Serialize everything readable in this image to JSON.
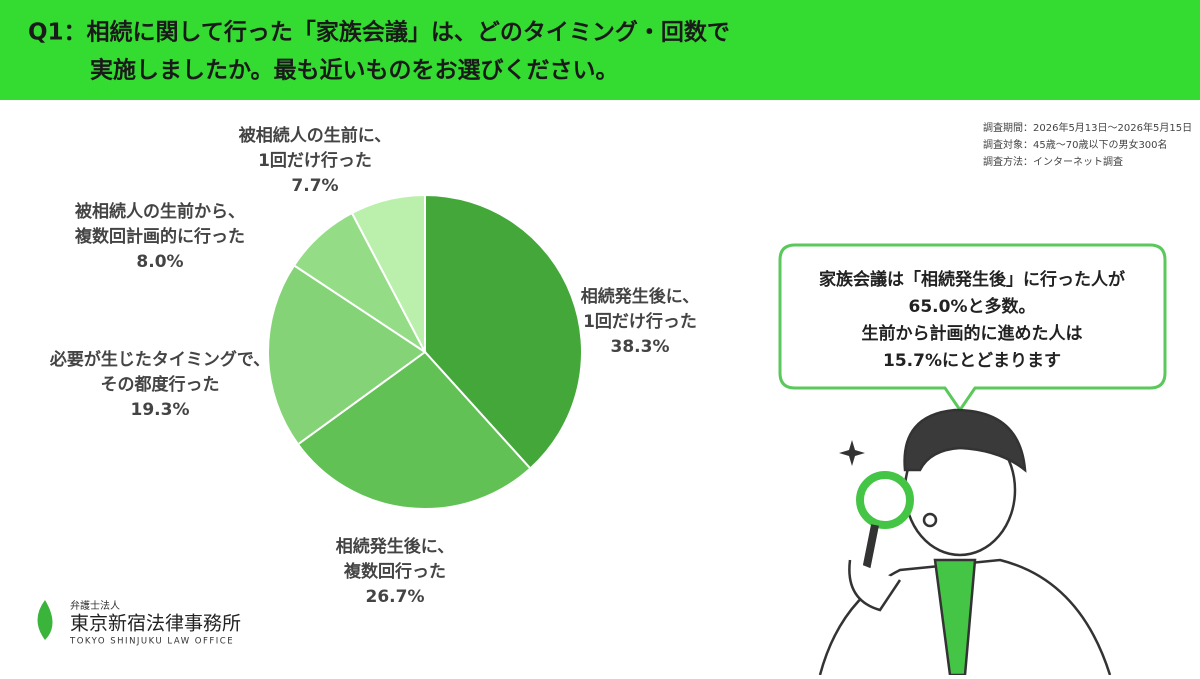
{
  "chart_data": {
    "type": "pie",
    "title_lines": [
      "Q1：相続に関して行った「家族会議」は、どのタイミング・回数で",
      "実施しましたか。最も近いものをお選びください。"
    ],
    "categories": [
      "相続発生後に、\n1回だけ行った",
      "相続発生後に、\n複数回行った",
      "必要が生じたタイミングで、\nその都度行った",
      "被相続人の生前から、\n複数回計画的に行った",
      "被相続人の生前に、\n1回だけ行った"
    ],
    "values": [
      38.3,
      26.7,
      19.3,
      8.0,
      7.7
    ],
    "value_labels": [
      "38.3%",
      "26.7%",
      "19.3%",
      "8.0%",
      "7.7%"
    ],
    "colors": [
      "#44a73a",
      "#62c155",
      "#84d477",
      "#95dc87",
      "#baf0ac"
    ],
    "survey_notes": [
      "調査期間：2026年5月13日〜2026年5月15日",
      "調査対象：45歳〜70歳以下の男女300名",
      "調査方法：インターネット調査"
    ],
    "callout_lines": [
      "家族会議は「相続発生後」に行った人が",
      "65.0%と多数。",
      "生前から計画的に進めた人は",
      "15.7%にとどまります"
    ],
    "logo": {
      "kicker": "弁護士法人",
      "name": "東京新宿法律事務所",
      "english": "TOKYO SHINJUKU LAW OFFICE"
    }
  }
}
